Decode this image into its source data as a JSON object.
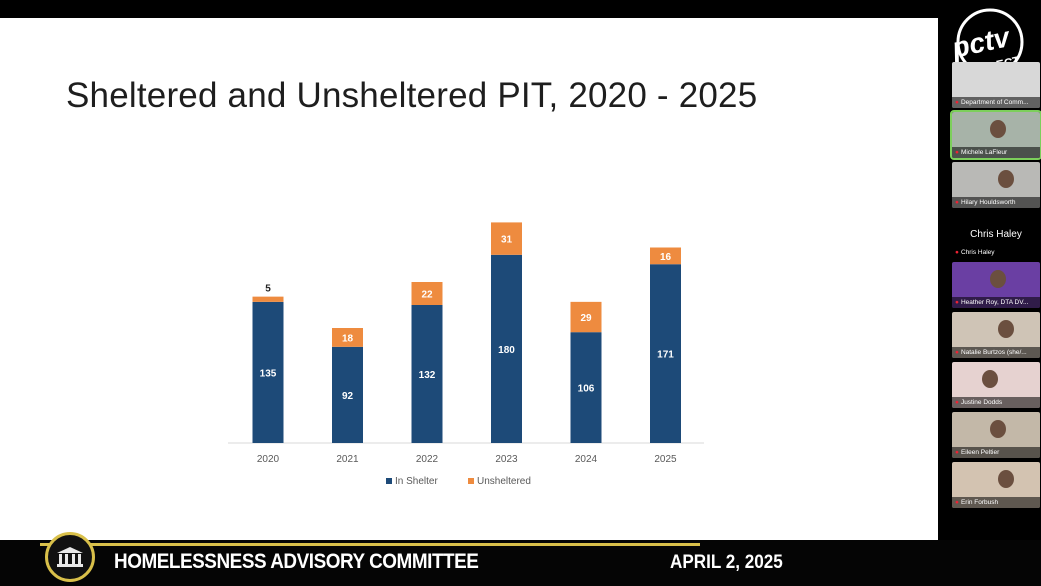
{
  "slide": {
    "title": "Sheltered and Unsheltered PIT, 2020 - 2025"
  },
  "chart_data": {
    "type": "bar",
    "stacked": true,
    "title": "Sheltered and Unsheltered PIT, 2020 - 2025",
    "categories": [
      "2020",
      "2021",
      "2022",
      "2023",
      "2024",
      "2025"
    ],
    "series": [
      {
        "name": "In Shelter",
        "color": "#1d4a78",
        "values": [
          135,
          92,
          132,
          180,
          106,
          171
        ]
      },
      {
        "name": "Unsheltered",
        "color": "#ee8b3f",
        "values": [
          5,
          18,
          22,
          31,
          29,
          16
        ]
      }
    ],
    "xlabel": "",
    "ylabel": "",
    "ylim": [
      0,
      220
    ],
    "grid": false,
    "legend": "bottom"
  },
  "gallery": {
    "logo_line1": "pctv",
    "logo_line2": "SELECT",
    "active_speaker": "Chris Haley",
    "participants": [
      {
        "name": "Department of Comm...",
        "bg": "#d8d8d8"
      },
      {
        "name": "Michele LaFleur",
        "bg": "#a7b3a8"
      },
      {
        "name": "Hilary Houldsworth",
        "bg": "#b9b9b6"
      },
      {
        "name": "Chris Haley",
        "bg": "#000000"
      },
      {
        "name": "Heather Roy, DTA DV...",
        "bg": "#6a3fa3"
      },
      {
        "name": "Natalie Burtzos (she/...",
        "bg": "#cfc4b6"
      },
      {
        "name": "Justine Dodds",
        "bg": "#e6d2d0"
      },
      {
        "name": "Eileen Peltier",
        "bg": "#c3b8a8"
      },
      {
        "name": "Erin Forbush",
        "bg": "#d3c3b1"
      }
    ]
  },
  "lower_third": {
    "title": "HOMELESSNESS ADVISORY COMMITTEE",
    "date": "APRIL 2, 2025"
  }
}
